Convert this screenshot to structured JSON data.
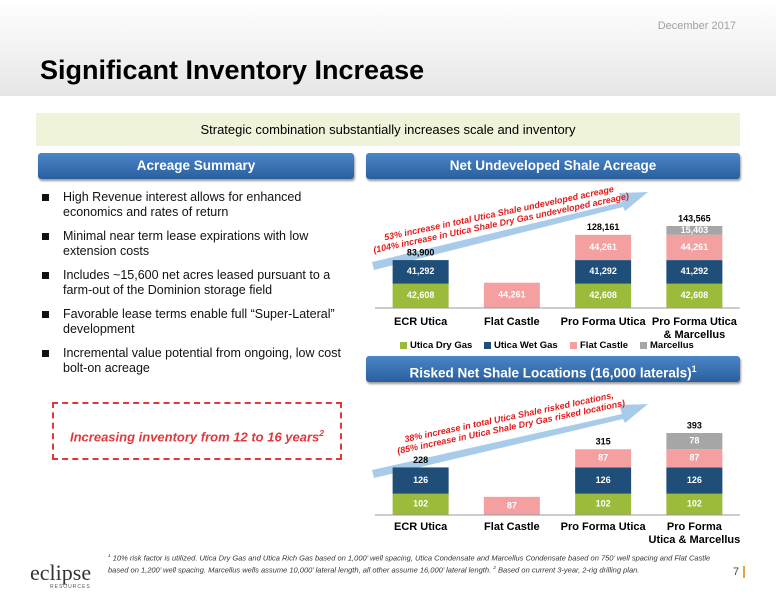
{
  "date": "December 2017",
  "title": "Significant Inventory Increase",
  "banner": "Strategic combination substantially increases scale and inventory",
  "acreage_summary": {
    "heading": "Acreage Summary",
    "bullets": [
      "High Revenue interest allows for enhanced economics and rates of return",
      "Minimal near term lease expirations with low extension costs",
      "Includes ~15,600 net acres leased pursuant to a farm-out of the Dominion storage field",
      "Favorable lease terms enable full “Super-Lateral” development",
      "Incremental value potential from ongoing, low cost bolt-on acreage"
    ]
  },
  "callout": {
    "text": "Increasing inventory from 12 to 16 years",
    "sup": "2"
  },
  "chart_data": [
    {
      "type": "bar",
      "stacked": true,
      "title": "Net Undeveloped Shale Acreage",
      "annotation": [
        "53% increase in total Utica Shale undeveloped acreage",
        "(104% increase in Utica Shale Dry Gas undeveloped acreage)"
      ],
      "categories": [
        "ECR Utica",
        "Flat Castle",
        "Pro Forma Utica",
        "Pro Forma Utica\n& Marcellus"
      ],
      "series": [
        {
          "name": "Utica Dry Gas",
          "color": "#9bbb3b",
          "values": [
            42608,
            null,
            42608,
            42608
          ],
          "value_labels": [
            "42,608",
            null,
            "42,608",
            "42,608"
          ]
        },
        {
          "name": "Utica Wet Gas",
          "color": "#1f4e79",
          "values": [
            41292,
            null,
            41292,
            41292
          ],
          "value_labels": [
            "41,292",
            null,
            "41,292",
            "41,292"
          ]
        },
        {
          "name": "Flat Castle",
          "color": "#f4a0a0",
          "values": [
            null,
            44261,
            44261,
            44261
          ],
          "value_labels": [
            null,
            "44,261",
            "44,261",
            "44,261"
          ]
        },
        {
          "name": "Marcellus",
          "color": "#a6a6a6",
          "values": [
            null,
            null,
            null,
            15403
          ],
          "value_labels": [
            null,
            null,
            null,
            "15,403"
          ]
        }
      ],
      "totals": {
        "values": [
          83900,
          null,
          128161,
          143565
        ],
        "value_labels": [
          "83,900",
          null,
          "128,161",
          "143,565"
        ]
      },
      "legend": true
    },
    {
      "type": "bar",
      "stacked": true,
      "title": "Risked Net Shale Locations (16,000 laterals)",
      "title_sup": "1",
      "annotation": [
        "38% increase in total Utica Shale risked locations,",
        "(85% increase in Utica Shale Dry Gas risked locations)"
      ],
      "categories": [
        "ECR Utica",
        "Flat Castle",
        "Pro Forma Utica",
        "Pro Forma\nUtica & Marcellus"
      ],
      "series": [
        {
          "name": "Utica Dry Gas",
          "color": "#9bbb3b",
          "values": [
            102,
            null,
            102,
            102
          ]
        },
        {
          "name": "Utica Wet Gas",
          "color": "#1f4e79",
          "values": [
            126,
            null,
            126,
            126
          ]
        },
        {
          "name": "Flat Castle",
          "color": "#f4a0a0",
          "values": [
            null,
            87,
            87,
            87
          ]
        },
        {
          "name": "Marcellus",
          "color": "#a6a6a6",
          "values": [
            null,
            null,
            null,
            78
          ]
        }
      ],
      "totals": {
        "values": [
          228,
          null,
          315,
          393
        ]
      },
      "legend": false
    }
  ],
  "footnote": {
    "marker1": "1",
    "text1": "10% risk factor is utilized. Utica Dry Gas and Utica Rich Gas based on 1,000’ well spacing, Utica Condensate and Marcellus Condensate based on 750’ well spacing and Flat Castle based on 1,200’ well spacing. Marcellus wells assume 10,000’ lateral length, all other assume 16,000’ lateral length.",
    "marker2": "2",
    "text2": "Based on current 3-year, 2-rig drilling plan."
  },
  "logo": {
    "name": "eclipse",
    "sub": "RESOURCES"
  },
  "page_number": "7"
}
